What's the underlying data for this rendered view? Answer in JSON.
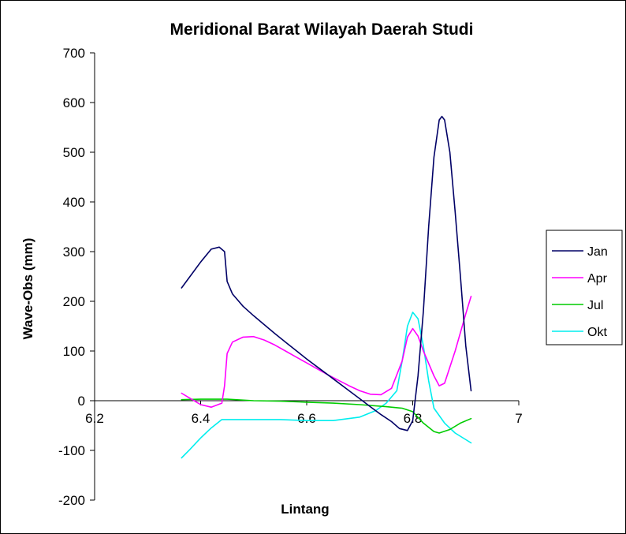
{
  "chart_data": {
    "type": "line",
    "title": "Meridional Barat Wilayah Daerah Studi",
    "xlabel": "Lintang",
    "ylabel": "Wave-Obs (mm)",
    "xlim": [
      6.2,
      7
    ],
    "ylim": [
      -200,
      700
    ],
    "x_ticks": [
      "6.2",
      "6.4",
      "6.6",
      "6.8",
      "7"
    ],
    "y_ticks": [
      "-200",
      "-100",
      "0",
      "100",
      "200",
      "300",
      "400",
      "500",
      "600",
      "700"
    ],
    "legend_position": "right",
    "grid": false,
    "series": [
      {
        "name": "Jan",
        "color": "#000066",
        "points": [
          [
            6.364,
            227
          ],
          [
            6.38,
            250
          ],
          [
            6.4,
            279
          ],
          [
            6.42,
            305
          ],
          [
            6.435,
            309
          ],
          [
            6.445,
            300
          ],
          [
            6.45,
            240
          ],
          [
            6.46,
            215
          ],
          [
            6.48,
            190
          ],
          [
            6.5,
            171
          ],
          [
            6.52,
            153
          ],
          [
            6.54,
            135
          ],
          [
            6.56,
            118
          ],
          [
            6.58,
            101
          ],
          [
            6.6,
            84
          ],
          [
            6.62,
            68
          ],
          [
            6.64,
            52
          ],
          [
            6.66,
            36
          ],
          [
            6.68,
            20
          ],
          [
            6.7,
            4
          ],
          [
            6.72,
            -12
          ],
          [
            6.74,
            -28
          ],
          [
            6.76,
            -42
          ],
          [
            6.775,
            -56
          ],
          [
            6.79,
            -60
          ],
          [
            6.8,
            -40
          ],
          [
            6.81,
            50
          ],
          [
            6.82,
            180
          ],
          [
            6.83,
            350
          ],
          [
            6.84,
            490
          ],
          [
            6.85,
            565
          ],
          [
            6.855,
            572
          ],
          [
            6.86,
            565
          ],
          [
            6.87,
            500
          ],
          [
            6.88,
            380
          ],
          [
            6.89,
            250
          ],
          [
            6.9,
            110
          ],
          [
            6.91,
            20
          ]
        ]
      },
      {
        "name": "Apr",
        "color": "#ff00ff",
        "points": [
          [
            6.364,
            15
          ],
          [
            6.38,
            5
          ],
          [
            6.4,
            -8
          ],
          [
            6.42,
            -13
          ],
          [
            6.44,
            -5
          ],
          [
            6.445,
            30
          ],
          [
            6.45,
            95
          ],
          [
            6.46,
            118
          ],
          [
            6.48,
            128
          ],
          [
            6.5,
            129
          ],
          [
            6.52,
            122
          ],
          [
            6.54,
            112
          ],
          [
            6.56,
            100
          ],
          [
            6.58,
            88
          ],
          [
            6.6,
            76
          ],
          [
            6.62,
            64
          ],
          [
            6.64,
            52
          ],
          [
            6.66,
            41
          ],
          [
            6.68,
            30
          ],
          [
            6.7,
            20
          ],
          [
            6.72,
            13
          ],
          [
            6.74,
            12
          ],
          [
            6.76,
            25
          ],
          [
            6.78,
            80
          ],
          [
            6.79,
            128
          ],
          [
            6.8,
            145
          ],
          [
            6.81,
            130
          ],
          [
            6.82,
            100
          ],
          [
            6.84,
            50
          ],
          [
            6.85,
            30
          ],
          [
            6.86,
            35
          ],
          [
            6.88,
            100
          ],
          [
            6.9,
            175
          ],
          [
            6.91,
            210
          ]
        ]
      },
      {
        "name": "Jul",
        "color": "#00cc00",
        "points": [
          [
            6.364,
            2
          ],
          [
            6.4,
            3
          ],
          [
            6.45,
            3
          ],
          [
            6.5,
            0
          ],
          [
            6.55,
            -1
          ],
          [
            6.6,
            -3
          ],
          [
            6.65,
            -5
          ],
          [
            6.7,
            -8
          ],
          [
            6.75,
            -12
          ],
          [
            6.78,
            -15
          ],
          [
            6.8,
            -22
          ],
          [
            6.82,
            -45
          ],
          [
            6.84,
            -62
          ],
          [
            6.85,
            -65
          ],
          [
            6.87,
            -58
          ],
          [
            6.89,
            -45
          ],
          [
            6.91,
            -36
          ]
        ]
      },
      {
        "name": "Okt",
        "color": "#00eeee",
        "points": [
          [
            6.364,
            -115
          ],
          [
            6.38,
            -98
          ],
          [
            6.4,
            -75
          ],
          [
            6.42,
            -55
          ],
          [
            6.44,
            -38
          ],
          [
            6.46,
            -38
          ],
          [
            6.5,
            -38
          ],
          [
            6.55,
            -38
          ],
          [
            6.6,
            -40
          ],
          [
            6.65,
            -40
          ],
          [
            6.7,
            -33
          ],
          [
            6.73,
            -20
          ],
          [
            6.75,
            -5
          ],
          [
            6.77,
            20
          ],
          [
            6.78,
            80
          ],
          [
            6.79,
            150
          ],
          [
            6.8,
            178
          ],
          [
            6.81,
            165
          ],
          [
            6.82,
            110
          ],
          [
            6.83,
            40
          ],
          [
            6.84,
            -15
          ],
          [
            6.86,
            -45
          ],
          [
            6.88,
            -65
          ],
          [
            6.91,
            -85
          ]
        ]
      }
    ]
  }
}
